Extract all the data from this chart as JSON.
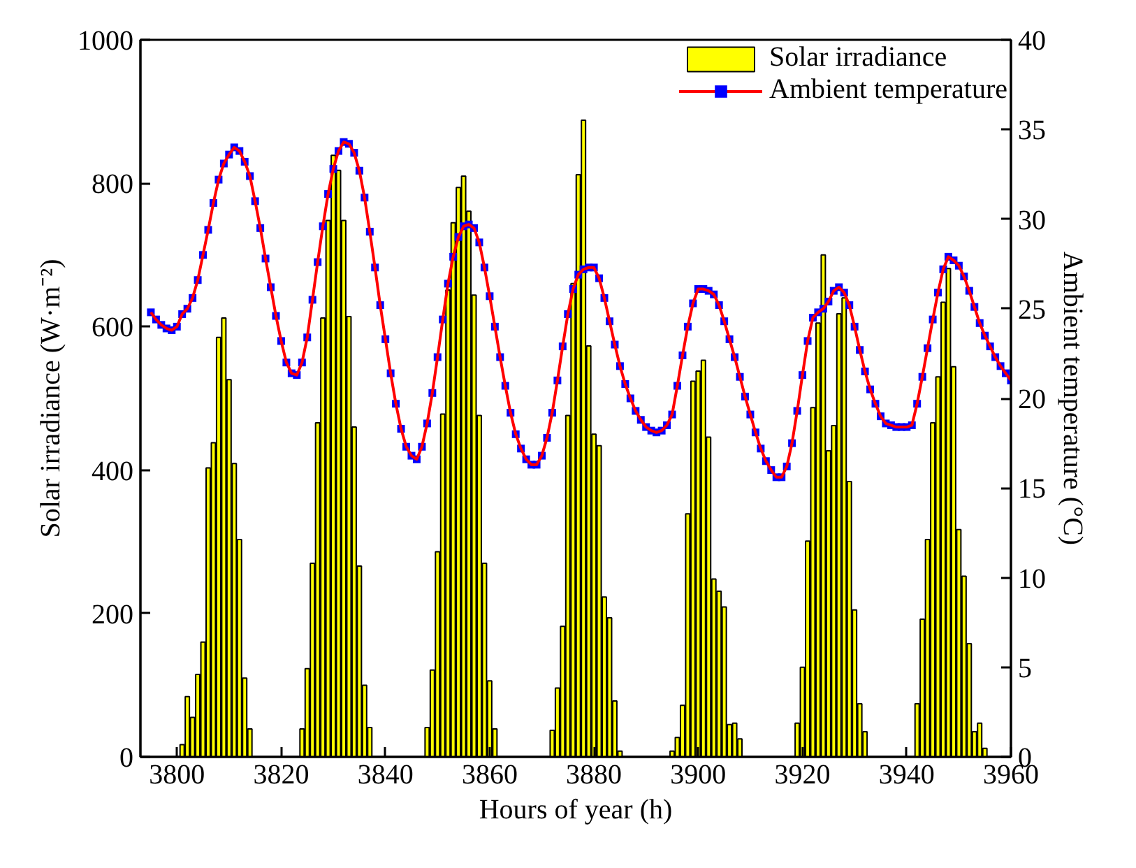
{
  "chart_data": {
    "type": "bar",
    "xlabel": "Hours of year (h)",
    "ylabel": "Solar irradiance (W·m⁻²)",
    "y2label": "Ambient temperature (°C)",
    "xlim": [
      3793,
      3960
    ],
    "xticks": [
      3800,
      3820,
      3840,
      3860,
      3880,
      3900,
      3920,
      3940,
      3960
    ],
    "ylim": [
      0,
      1000
    ],
    "yticks": [
      0,
      200,
      400,
      600,
      800,
      1000
    ],
    "y2lim": [
      0,
      40
    ],
    "y2ticks": [
      0,
      5,
      10,
      15,
      20,
      25,
      30,
      35,
      40
    ],
    "legend": "top right",
    "grid": false,
    "series": [
      {
        "name": "Solar irradiance",
        "color": "#ffff00",
        "x": [
          3801,
          3802,
          3803,
          3804,
          3805,
          3806,
          3807,
          3808,
          3809,
          3810,
          3811,
          3812,
          3813,
          3814,
          3824,
          3825,
          3826,
          3827,
          3828,
          3829,
          3830,
          3831,
          3832,
          3833,
          3834,
          3835,
          3836,
          3837,
          3848,
          3849,
          3850,
          3851,
          3852,
          3853,
          3854,
          3855,
          3856,
          3857,
          3858,
          3859,
          3860,
          3861,
          3872,
          3873,
          3874,
          3875,
          3876,
          3877,
          3878,
          3879,
          3880,
          3881,
          3882,
          3883,
          3884,
          3885,
          3895,
          3896,
          3897,
          3898,
          3899,
          3900,
          3901,
          3902,
          3903,
          3904,
          3905,
          3906,
          3907,
          3908,
          3919,
          3920,
          3921,
          3922,
          3923,
          3924,
          3925,
          3926,
          3927,
          3928,
          3929,
          3930,
          3931,
          3932,
          3942,
          3943,
          3944,
          3945,
          3946,
          3947,
          3948,
          3949,
          3950,
          3951,
          3952,
          3953,
          3954,
          3955
        ],
        "values": [
          17,
          84,
          55,
          115,
          160,
          403,
          438,
          585,
          612,
          526,
          409,
          303,
          110,
          39,
          39,
          123,
          270,
          466,
          612,
          748,
          839,
          818,
          748,
          614,
          460,
          266,
          100,
          41,
          41,
          121,
          286,
          478,
          651,
          745,
          794,
          810,
          761,
          644,
          476,
          270,
          106,
          39,
          37,
          96,
          182,
          476,
          660,
          812,
          888,
          573,
          450,
          434,
          223,
          194,
          78,
          8,
          8,
          27,
          72,
          339,
          524,
          538,
          553,
          446,
          248,
          231,
          209,
          45,
          47,
          25,
          47,
          125,
          301,
          487,
          605,
          700,
          427,
          462,
          618,
          640,
          384,
          205,
          74,
          35,
          74,
          192,
          303,
          466,
          530,
          634,
          681,
          544,
          317,
          252,
          158,
          35,
          47,
          12
        ]
      },
      {
        "name": "Ambient temperature",
        "type": "line",
        "axis": "y2",
        "color": "#ff0000",
        "marker": "square",
        "colors": [
          "#0000ff",
          "#0000ff",
          "#0000ff",
          "#0000ff",
          "#0000ff",
          "#0000ff",
          "#0000ff",
          "#0000ff",
          "#0000ff",
          "#0000ff",
          "#0000ff",
          "#0000ff",
          "#0000ff",
          "#0000ff",
          "#0000ff",
          "#0000ff",
          "#0000ff",
          "#0000ff",
          "#0000ff",
          "#0000ff",
          "#0000ff",
          "#0000ff",
          "#0000ff",
          "#0000ff",
          "#0000ff",
          "#0000ff",
          "#0000ff",
          "#0000ff",
          "#0000ff",
          "#0000ff",
          "#0000ff",
          "#0000ff",
          "#0000ff",
          "#0000ff",
          "#0000ff",
          "#0000ff",
          "#0000ff",
          "#0000ff",
          "#0000ff",
          "#0000ff",
          "#0000ff",
          "#0000ff",
          "#0000ff",
          "#0000ff",
          "#0000ff",
          "#0000ff",
          "#0000ff",
          "#0000ff",
          "#0000ff",
          "#0000ff",
          "#0000ff",
          "#0000ff",
          "#0000ff",
          "#0000ff",
          "#0000ff",
          "#0000ff",
          "#0000ff",
          "#0000ff",
          "#0000ff",
          "#0000ff",
          "#0000ff",
          "#0000ff",
          "#0000ff",
          "#0000ff",
          "#0000ff",
          "#0000ff",
          "#0000ff",
          "#0000ff",
          "#0000ff",
          "#0000ff",
          "#0000ff",
          "#0000ff",
          "#0000ff",
          "#0000ff",
          "#0000ff",
          "#0000ff",
          "#0000ff",
          "#0000ff",
          "#0000ff",
          "#0000ff",
          "#0000ff",
          "#0000ff",
          "#0000ff",
          "#0000ff",
          "#0000ff",
          "#0000ff",
          "#0000ff",
          "#0000ff",
          "#0000ff",
          "#0000ff",
          "#0000ff",
          "#0000ff",
          "#0000ff",
          "#0000ff",
          "#0000ff",
          "#0000ff",
          "#0000ff",
          "#0000ff",
          "#0000ff",
          "#0000ff",
          "#0000ff",
          "#0000ff",
          "#0000ff",
          "#0000ff",
          "#0000ff",
          "#0000ff",
          "#0000ff",
          "#0000ff",
          "#0000ff",
          "#0000ff",
          "#0000ff",
          "#0000ff",
          "#0000ff",
          "#0000ff",
          "#0000ff",
          "#0000ff",
          "#0000ff",
          "#0000ff",
          "#0000ff",
          "#0000ff",
          "#0000ff",
          "#0000ff",
          "#0000ff",
          "#0000ff",
          "#0000ff",
          "#0000ff",
          "#0000ff",
          "#0000ff",
          "#0000ff",
          "#0000ff",
          "#0000ff",
          "#0000ff",
          "#0000ff",
          "#0000ff",
          "#0000ff",
          "#0000ff",
          "#0000ff",
          "#0000ff",
          "#0000ff",
          "#0000ff",
          "#0000ff",
          "#0000ff",
          "#0000ff",
          "#0000ff",
          "#0000ff",
          "#0000ff",
          "#0000ff",
          "#0000ff",
          "#0000ff",
          "#0000ff",
          "#0000ff",
          "#0000ff",
          "#0000ff",
          "#0000ff",
          "#0000ff",
          "#0000ff",
          "#0000ff",
          "#0000ff",
          "#0000ff",
          "#0000ff",
          "#0000ff",
          "#0000ff",
          "#0000ff",
          "#0000ff",
          "#0000ff",
          "#0000ff"
        ],
        "line_style": "solid",
        "x": [
          3795,
          3796,
          3797,
          3798,
          3799,
          3800,
          3801,
          3802,
          3803,
          3804,
          3805,
          3806,
          3807,
          3808,
          3809,
          3810,
          3811,
          3812,
          3813,
          3814,
          3815,
          3816,
          3817,
          3818,
          3819,
          3820,
          3821,
          3822,
          3823,
          3824,
          3825,
          3826,
          3827,
          3828,
          3829,
          3830,
          3831,
          3832,
          3833,
          3834,
          3835,
          3836,
          3837,
          3838,
          3839,
          3840,
          3841,
          3842,
          3843,
          3844,
          3845,
          3846,
          3847,
          3848,
          3849,
          3850,
          3851,
          3852,
          3853,
          3854,
          3855,
          3856,
          3857,
          3858,
          3859,
          3860,
          3861,
          3862,
          3863,
          3864,
          3865,
          3866,
          3867,
          3868,
          3869,
          3870,
          3871,
          3872,
          3873,
          3874,
          3875,
          3876,
          3877,
          3878,
          3879,
          3880,
          3881,
          3882,
          3883,
          3884,
          3885,
          3886,
          3887,
          3888,
          3889,
          3890,
          3891,
          3892,
          3893,
          3894,
          3895,
          3896,
          3897,
          3898,
          3899,
          3900,
          3901,
          3902,
          3903,
          3904,
          3905,
          3906,
          3907,
          3908,
          3909,
          3910,
          3911,
          3912,
          3913,
          3914,
          3915,
          3916,
          3917,
          3918,
          3919,
          3920,
          3921,
          3922,
          3923,
          3924,
          3925,
          3926,
          3927,
          3928,
          3929,
          3930,
          3931,
          3932,
          3933,
          3934,
          3935,
          3936,
          3937,
          3938,
          3939,
          3940,
          3941,
          3942,
          3943,
          3944,
          3945,
          3946,
          3947,
          3948,
          3949,
          3950,
          3951,
          3952,
          3953,
          3954,
          3955,
          3956,
          3957,
          3958,
          3959,
          3960
        ],
        "values": [
          24.8,
          24.4,
          24.1,
          23.9,
          23.8,
          24.0,
          24.7,
          25.0,
          25.6,
          26.6,
          28.0,
          29.4,
          30.9,
          32.2,
          33.1,
          33.6,
          34.0,
          33.8,
          33.2,
          32.4,
          31.0,
          29.5,
          27.8,
          26.2,
          24.6,
          23.2,
          22.0,
          21.4,
          21.3,
          22.0,
          23.4,
          25.5,
          27.6,
          29.6,
          31.4,
          32.8,
          33.8,
          34.3,
          34.2,
          33.7,
          32.7,
          31.2,
          29.3,
          27.3,
          25.2,
          23.3,
          21.4,
          19.7,
          18.3,
          17.3,
          16.8,
          16.6,
          17.3,
          18.6,
          20.3,
          22.3,
          24.4,
          26.4,
          27.9,
          29.0,
          29.6,
          29.7,
          29.5,
          28.7,
          27.3,
          25.7,
          24.0,
          22.3,
          20.7,
          19.2,
          18.0,
          17.2,
          16.6,
          16.3,
          16.3,
          16.8,
          17.8,
          19.2,
          21.0,
          22.9,
          24.7,
          26.1,
          26.9,
          27.2,
          27.3,
          27.3,
          26.7,
          25.6,
          24.3,
          23.0,
          21.8,
          20.8,
          20.0,
          19.3,
          18.8,
          18.4,
          18.2,
          18.1,
          18.2,
          18.5,
          19.1,
          20.7,
          22.4,
          24.0,
          25.3,
          26.1,
          26.1,
          26.0,
          25.8,
          25.2,
          24.3,
          23.3,
          22.3,
          21.2,
          20.1,
          19.1,
          18.1,
          17.2,
          16.5,
          16.0,
          15.6,
          15.6,
          16.2,
          17.5,
          19.3,
          21.3,
          23.2,
          24.5,
          24.8,
          25.0,
          25.4,
          26.0,
          26.2,
          25.9,
          25.2,
          24.0,
          22.7,
          21.5,
          20.5,
          19.7,
          19.0,
          18.6,
          18.5,
          18.4,
          18.4,
          18.4,
          18.5,
          19.7,
          21.2,
          22.8,
          24.4,
          25.9,
          27.2,
          27.9,
          27.7,
          27.4,
          26.8,
          26.0,
          25.1,
          24.2,
          23.5,
          22.9,
          22.3,
          21.8,
          21.4,
          21.0
        ]
      }
    ]
  }
}
